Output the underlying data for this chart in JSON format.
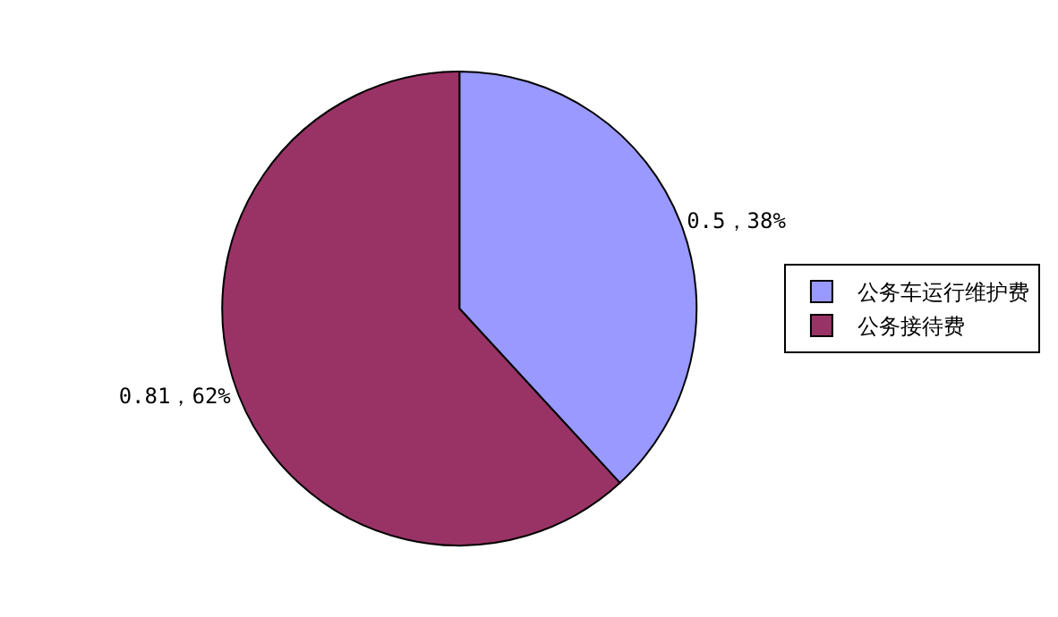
{
  "chart_data": {
    "type": "pie",
    "categories": [
      "公务车运行维护费",
      "公务接待费"
    ],
    "values": [
      0.5,
      0.81
    ],
    "value_labels": [
      "0.5，38%",
      "0.81，62%"
    ],
    "colors": [
      "#9999ff",
      "#993366"
    ],
    "legend": "right"
  }
}
